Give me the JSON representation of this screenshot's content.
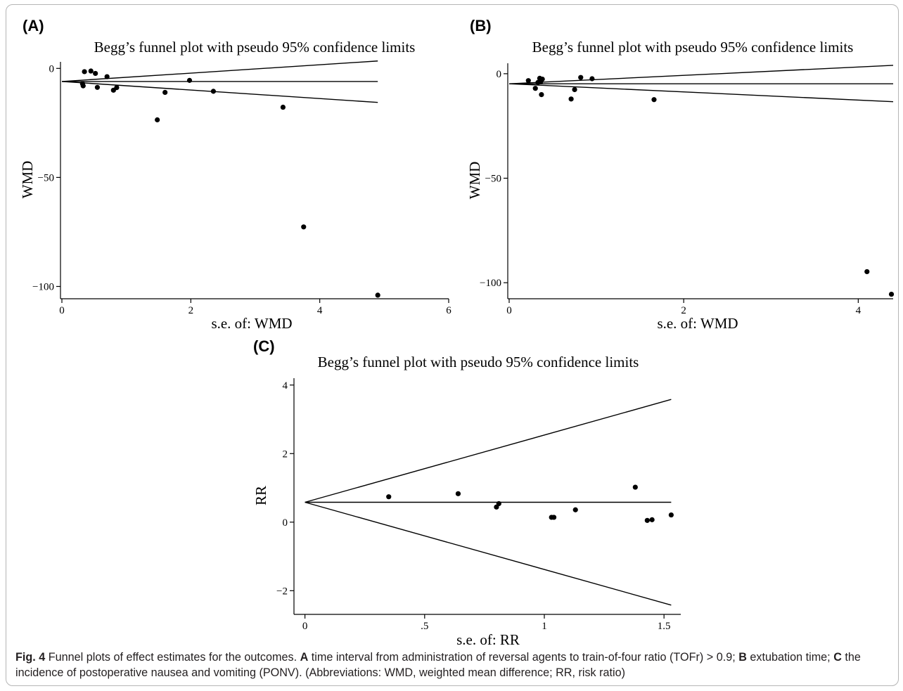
{
  "chart_data": [
    {
      "panel_label": "(A)",
      "type": "scatter",
      "title": "Begg’s funnel plot with pseudo 95% confidence limits",
      "xlabel": "s.e. of: WMD",
      "ylabel": "WMD",
      "xlim": [
        0,
        6
      ],
      "ylim": [
        -105,
        3
      ],
      "xticks": [
        0,
        2,
        4,
        6
      ],
      "xtick_labels": [
        "0",
        "2",
        "4",
        "6"
      ],
      "yticks": [
        0,
        -50,
        -100
      ],
      "ytick_labels": [
        "0",
        "−50",
        "−100"
      ],
      "pooled_estimate": -6,
      "funnel_limits": {
        "se_max": 4.9,
        "upper_at_max": 3.4,
        "lower_at_max": -15.6
      },
      "points": [
        {
          "x": 0.32,
          "y": -7
        },
        {
          "x": 0.33,
          "y": -8
        },
        {
          "x": 0.35,
          "y": -1.5
        },
        {
          "x": 0.45,
          "y": -1.2
        },
        {
          "x": 0.52,
          "y": -2.3
        },
        {
          "x": 0.55,
          "y": -8.7
        },
        {
          "x": 0.7,
          "y": -3.8
        },
        {
          "x": 0.8,
          "y": -10
        },
        {
          "x": 0.85,
          "y": -8.8
        },
        {
          "x": 1.48,
          "y": -23.6
        },
        {
          "x": 1.6,
          "y": -11
        },
        {
          "x": 1.98,
          "y": -5.5
        },
        {
          "x": 2.35,
          "y": -10.5
        },
        {
          "x": 3.43,
          "y": -17.8
        },
        {
          "x": 3.75,
          "y": -72.7
        },
        {
          "x": 4.9,
          "y": -104
        }
      ]
    },
    {
      "panel_label": "(B)",
      "type": "scatter",
      "title": "Begg’s funnel plot with pseudo 95% confidence limits",
      "xlabel": "s.e. of: WMD",
      "ylabel": "WMD",
      "xlim": [
        0,
        4.4
      ],
      "ylim": [
        -107,
        5
      ],
      "xticks": [
        0,
        2,
        4
      ],
      "xtick_labels": [
        "0",
        "2",
        "4"
      ],
      "yticks": [
        0,
        -50,
        -100
      ],
      "ytick_labels": [
        "0",
        "−50",
        "−100"
      ],
      "pooled_estimate": -4.8,
      "funnel_limits": {
        "se_max": 4.4,
        "upper_at_max": 4,
        "lower_at_max": -13.4
      },
      "points": [
        {
          "x": 0.22,
          "y": -3.3
        },
        {
          "x": 0.3,
          "y": -7
        },
        {
          "x": 0.33,
          "y": -4.2
        },
        {
          "x": 0.35,
          "y": -2.2
        },
        {
          "x": 0.36,
          "y": -3.9
        },
        {
          "x": 0.37,
          "y": -10
        },
        {
          "x": 0.38,
          "y": -2.6
        },
        {
          "x": 0.71,
          "y": -12.1
        },
        {
          "x": 0.75,
          "y": -7.6
        },
        {
          "x": 0.82,
          "y": -1.8
        },
        {
          "x": 0.95,
          "y": -2.4
        },
        {
          "x": 1.66,
          "y": -12.4
        },
        {
          "x": 4.1,
          "y": -94.7
        },
        {
          "x": 4.38,
          "y": -105.5
        }
      ]
    },
    {
      "panel_label": "(C)",
      "type": "scatter",
      "title": "Begg’s funnel plot with pseudo 95% confidence limits",
      "xlabel": "s.e. of: RR",
      "ylabel": "RR",
      "xlim": [
        -0.04,
        1.57
      ],
      "ylim": [
        -2.65,
        4.2
      ],
      "xticks": [
        0,
        0.5,
        1,
        1.5
      ],
      "xtick_labels": [
        "0",
        ".5",
        "1",
        "1.5"
      ],
      "yticks": [
        4,
        2,
        0,
        -2
      ],
      "ytick_labels": [
        "4",
        "2",
        "0",
        "−2"
      ],
      "pooled_estimate": 0.58,
      "funnel_limits": {
        "se_max": 1.53,
        "upper_at_max": 3.58,
        "lower_at_max": -2.42
      },
      "points": [
        {
          "x": 0.35,
          "y": 0.74
        },
        {
          "x": 0.64,
          "y": 0.83
        },
        {
          "x": 0.8,
          "y": 0.44
        },
        {
          "x": 0.81,
          "y": 0.54
        },
        {
          "x": 1.03,
          "y": 0.14
        },
        {
          "x": 1.04,
          "y": 0.14
        },
        {
          "x": 1.13,
          "y": 0.36
        },
        {
          "x": 1.38,
          "y": 1.02
        },
        {
          "x": 1.43,
          "y": 0.05
        },
        {
          "x": 1.45,
          "y": 0.07
        },
        {
          "x": 1.53,
          "y": 0.21
        }
      ]
    }
  ],
  "caption": {
    "figure_label": "Fig. 4",
    "text_intro": "  Funnel plots of effect estimates for the outcomes. ",
    "label_a": "A",
    "text_a": " time interval from administration of reversal agents to train-of-four ratio (TOFr) > 0.9; ",
    "label_b": "B",
    "text_b": " extubation time; ",
    "label_c": "C",
    "text_c": " the incidence of postoperative nausea and vomiting (PONV). (Abbreviations: WMD, weighted mean difference; RR, risk ratio)"
  }
}
